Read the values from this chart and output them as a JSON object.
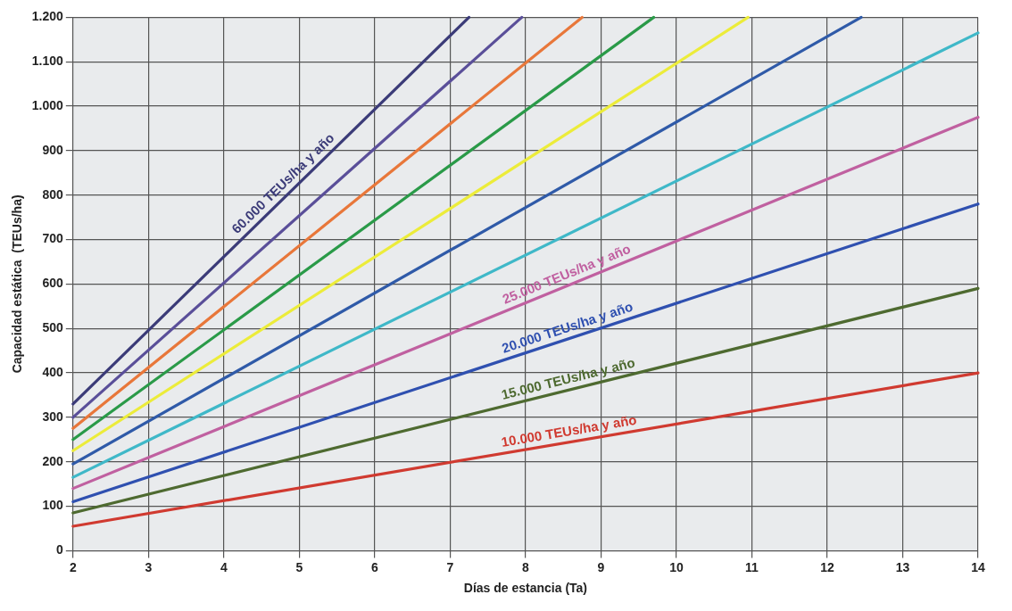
{
  "chart_data": {
    "type": "line",
    "xlabel": "Días de estancia (Ta)",
    "ylabel": "Capacidad estática  (TEUs/ha)",
    "xlim": [
      2,
      14
    ],
    "xticks": [
      2,
      3,
      4,
      5,
      6,
      7,
      8,
      9,
      10,
      11,
      12,
      13,
      14
    ],
    "ylim": [
      0,
      1200
    ],
    "yticks": [
      0,
      100,
      200,
      300,
      400,
      500,
      600,
      700,
      800,
      900,
      {
        "value": 1000,
        "label": "1.000"
      },
      {
        "value": 1100,
        "label": "1.100"
      },
      {
        "value": 1200,
        "label": "1.200"
      }
    ],
    "grid": true,
    "legend": false,
    "marker": "none",
    "line_style": "solid",
    "series": [
      {
        "name": "60.000 TEUs/ha y año",
        "color": "#3b3b78",
        "x": [
          2,
          7.25
        ],
        "values": [
          330,
          1200
        ]
      },
      {
        "color": "#5a4f99",
        "x": [
          2,
          7.95
        ],
        "values": [
          300,
          1200
        ]
      },
      {
        "color": "#e8773a",
        "x": [
          2,
          8.75
        ],
        "values": [
          275,
          1200
        ]
      },
      {
        "color": "#2a9a48",
        "x": [
          2,
          9.7
        ],
        "values": [
          250,
          1200
        ]
      },
      {
        "color": "#ecec3a",
        "x": [
          2,
          10.95
        ],
        "values": [
          225,
          1200
        ]
      },
      {
        "color": "#2f5aa8",
        "x": [
          2,
          12.45
        ],
        "values": [
          195,
          1200
        ]
      },
      {
        "color": "#3fb8c8",
        "x": [
          2,
          14
        ],
        "values": [
          165,
          1165
        ]
      },
      {
        "name": "25.000 TEUs/ha y año",
        "color": "#c060a0",
        "x": [
          2,
          14
        ],
        "values": [
          140,
          975
        ]
      },
      {
        "name": "20.000 TEUs/ha y año",
        "color": "#2f50b0",
        "x": [
          2,
          14
        ],
        "values": [
          110,
          780
        ]
      },
      {
        "name": "15.000 TEUs/ha y año",
        "color": "#4e6a30",
        "x": [
          2,
          14
        ],
        "values": [
          85,
          590
        ]
      },
      {
        "name": "10.000 TEUs/ha y año",
        "color": "#d03a30",
        "x": [
          2,
          14
        ],
        "values": [
          55,
          400
        ]
      }
    ]
  }
}
